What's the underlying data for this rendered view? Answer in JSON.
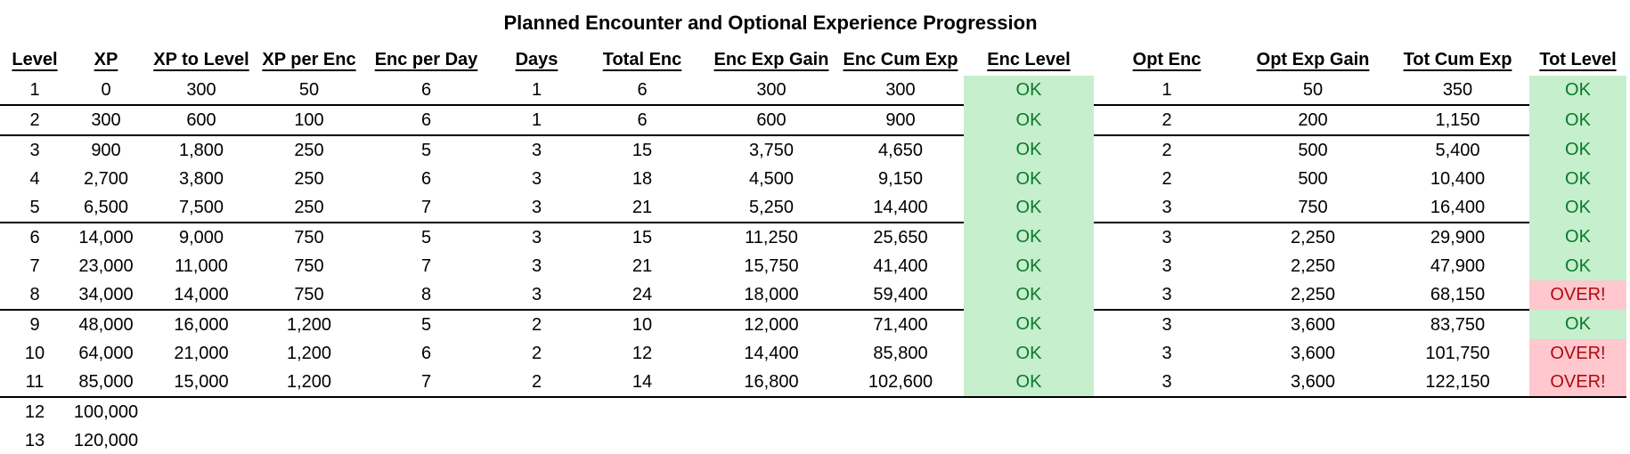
{
  "title": "Planned Encounter and Optional Experience Progression",
  "colors": {
    "good_bg": "#C6EFCE",
    "good_text": "#0A7A28",
    "bad_bg": "#FFC7CE",
    "bad_text": "#AD0A10",
    "grid_line": "#000000"
  },
  "statuses": {
    "ok": "OK",
    "over": "OVER!"
  },
  "table": {
    "columns": [
      {
        "id": "level",
        "label": "Level"
      },
      {
        "id": "xp",
        "label": "XP"
      },
      {
        "id": "xp_to_level",
        "label": "XP to Level"
      },
      {
        "id": "xp_per_enc",
        "label": "XP per Enc"
      },
      {
        "id": "enc_per_day",
        "label": "Enc per Day"
      },
      {
        "id": "days",
        "label": "Days"
      },
      {
        "id": "total_enc",
        "label": "Total Enc"
      },
      {
        "id": "enc_exp_gain",
        "label": "Enc Exp Gain"
      },
      {
        "id": "enc_cum_exp",
        "label": "Enc Cum Exp"
      },
      {
        "id": "enc_level",
        "label": "Enc Level"
      },
      {
        "id": "opt_enc",
        "label": "Opt Enc"
      },
      {
        "id": "opt_exp_gain",
        "label": "Opt Exp Gain"
      },
      {
        "id": "tot_cum_exp",
        "label": "Tot Cum Exp"
      },
      {
        "id": "tot_level",
        "label": "Tot Level"
      }
    ],
    "rows": [
      {
        "cells": [
          "1",
          "0",
          "300",
          "50",
          "6",
          "1",
          "6",
          "300",
          "300",
          "OK",
          "1",
          "50",
          "350",
          "OK"
        ],
        "separator_after": true,
        "separator_full": false
      },
      {
        "cells": [
          "2",
          "300",
          "600",
          "100",
          "6",
          "1",
          "6",
          "600",
          "900",
          "OK",
          "2",
          "200",
          "1,150",
          "OK"
        ],
        "separator_after": true,
        "separator_full": false
      },
      {
        "cells": [
          "3",
          "900",
          "1,800",
          "250",
          "5",
          "3",
          "15",
          "3,750",
          "4,650",
          "OK",
          "2",
          "500",
          "5,400",
          "OK"
        ],
        "separator_after": false,
        "separator_full": false
      },
      {
        "cells": [
          "4",
          "2,700",
          "3,800",
          "250",
          "6",
          "3",
          "18",
          "4,500",
          "9,150",
          "OK",
          "2",
          "500",
          "10,400",
          "OK"
        ],
        "separator_after": false,
        "separator_full": false
      },
      {
        "cells": [
          "5",
          "6,500",
          "7,500",
          "250",
          "7",
          "3",
          "21",
          "5,250",
          "14,400",
          "OK",
          "3",
          "750",
          "16,400",
          "OK"
        ],
        "separator_after": true,
        "separator_full": false
      },
      {
        "cells": [
          "6",
          "14,000",
          "9,000",
          "750",
          "5",
          "3",
          "15",
          "11,250",
          "25,650",
          "OK",
          "3",
          "2,250",
          "29,900",
          "OK"
        ],
        "separator_after": false,
        "separator_full": false
      },
      {
        "cells": [
          "7",
          "23,000",
          "11,000",
          "750",
          "7",
          "3",
          "21",
          "15,750",
          "41,400",
          "OK",
          "3",
          "2,250",
          "47,900",
          "OK"
        ],
        "separator_after": false,
        "separator_full": false
      },
      {
        "cells": [
          "8",
          "34,000",
          "14,000",
          "750",
          "8",
          "3",
          "24",
          "18,000",
          "59,400",
          "OK",
          "3",
          "2,250",
          "68,150",
          "OVER!"
        ],
        "separator_after": true,
        "separator_full": false
      },
      {
        "cells": [
          "9",
          "48,000",
          "16,000",
          "1,200",
          "5",
          "2",
          "10",
          "12,000",
          "71,400",
          "OK",
          "3",
          "3,600",
          "83,750",
          "OK"
        ],
        "separator_after": false,
        "separator_full": false
      },
      {
        "cells": [
          "10",
          "64,000",
          "21,000",
          "1,200",
          "6",
          "2",
          "12",
          "14,400",
          "85,800",
          "OK",
          "3",
          "3,600",
          "101,750",
          "OVER!"
        ],
        "separator_after": false,
        "separator_full": false
      },
      {
        "cells": [
          "11",
          "85,000",
          "15,000",
          "1,200",
          "7",
          "2",
          "14",
          "16,800",
          "102,600",
          "OK",
          "3",
          "3,600",
          "122,150",
          "OVER!"
        ],
        "separator_after": true,
        "separator_full": true
      },
      {
        "cells": [
          "12",
          "100,000",
          "",
          "",
          "",
          "",
          "",
          "",
          "",
          "",
          "",
          "",
          "",
          ""
        ],
        "separator_after": false,
        "separator_full": false
      },
      {
        "cells": [
          "13",
          "120,000",
          "",
          "",
          "",
          "",
          "",
          "",
          "",
          "",
          "",
          "",
          "",
          ""
        ],
        "separator_after": false,
        "separator_full": false
      }
    ]
  }
}
